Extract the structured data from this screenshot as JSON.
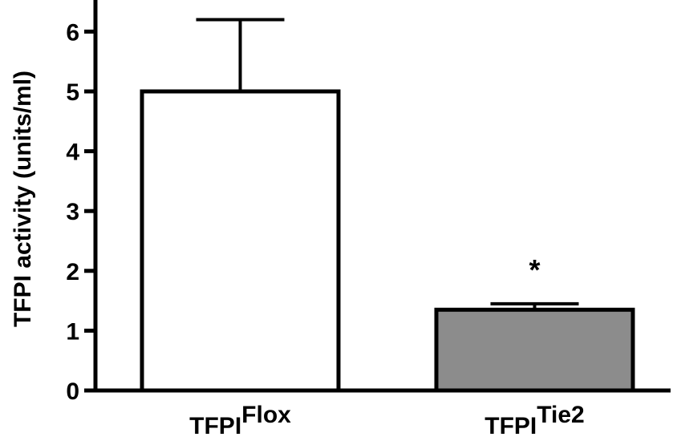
{
  "chart_data": {
    "type": "bar",
    "ylabel": "TFPI activity (units/ml)",
    "ylim": [
      0,
      6
    ],
    "yticks": [
      "0",
      "1",
      "2",
      "3",
      "4",
      "5",
      "6"
    ],
    "grid": false,
    "categories": [
      {
        "base": "TFPI",
        "sup": "Flox"
      },
      {
        "base": "TFPI",
        "sup": "Tie2"
      }
    ],
    "values": [
      5.0,
      1.35
    ],
    "error_upper": [
      6.2,
      1.45
    ],
    "colors": [
      "#ffffff",
      "#8c8c8c"
    ],
    "annotations": [
      "",
      "*"
    ]
  }
}
